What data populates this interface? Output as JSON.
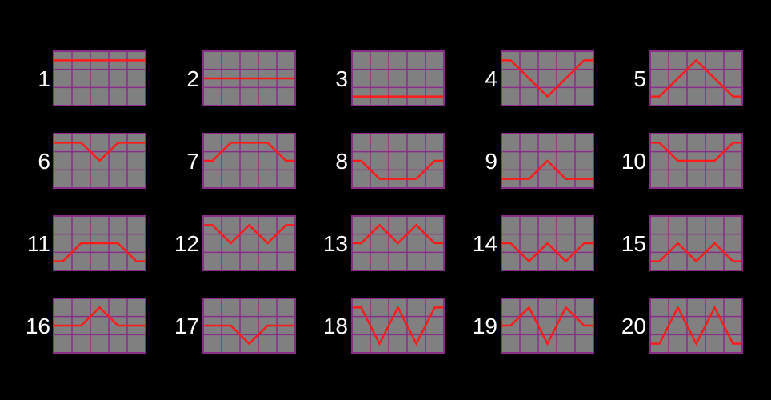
{
  "colors": {
    "background": "#000000",
    "cell_fill": "#808080",
    "grid_line": "#8a2c8a",
    "line": "#ff1a1a",
    "number": "#ffffff"
  },
  "grid": {
    "cols": 5,
    "rows": 3
  },
  "paylines": [
    {
      "label": "1",
      "rows": [
        0,
        0,
        0,
        0,
        0
      ]
    },
    {
      "label": "2",
      "rows": [
        1,
        1,
        1,
        1,
        1
      ]
    },
    {
      "label": "3",
      "rows": [
        2,
        2,
        2,
        2,
        2
      ]
    },
    {
      "label": "4",
      "rows": [
        0,
        1,
        2,
        1,
        0
      ]
    },
    {
      "label": "5",
      "rows": [
        2,
        1,
        0,
        1,
        2
      ]
    },
    {
      "label": "6",
      "rows": [
        0,
        0,
        1,
        0,
        0
      ]
    },
    {
      "label": "7",
      "rows": [
        1,
        0,
        0,
        0,
        1
      ]
    },
    {
      "label": "8",
      "rows": [
        1,
        2,
        2,
        2,
        1
      ]
    },
    {
      "label": "9",
      "rows": [
        2,
        2,
        1,
        2,
        2
      ]
    },
    {
      "label": "10",
      "rows": [
        0,
        1,
        1,
        1,
        0
      ]
    },
    {
      "label": "11",
      "rows": [
        2,
        1,
        1,
        1,
        2
      ]
    },
    {
      "label": "12",
      "rows": [
        0,
        1,
        0,
        1,
        0
      ]
    },
    {
      "label": "13",
      "rows": [
        1,
        0,
        1,
        0,
        1
      ]
    },
    {
      "label": "14",
      "rows": [
        1,
        2,
        1,
        2,
        1
      ]
    },
    {
      "label": "15",
      "rows": [
        2,
        1,
        2,
        1,
        2
      ]
    },
    {
      "label": "16",
      "rows": [
        1,
        1,
        0,
        1,
        1
      ]
    },
    {
      "label": "17",
      "rows": [
        1,
        1,
        2,
        1,
        1
      ]
    },
    {
      "label": "18",
      "rows": [
        0,
        2,
        0,
        2,
        0
      ]
    },
    {
      "label": "19",
      "rows": [
        1,
        0,
        2,
        0,
        1
      ]
    },
    {
      "label": "20",
      "rows": [
        2,
        0,
        2,
        0,
        2
      ]
    }
  ]
}
